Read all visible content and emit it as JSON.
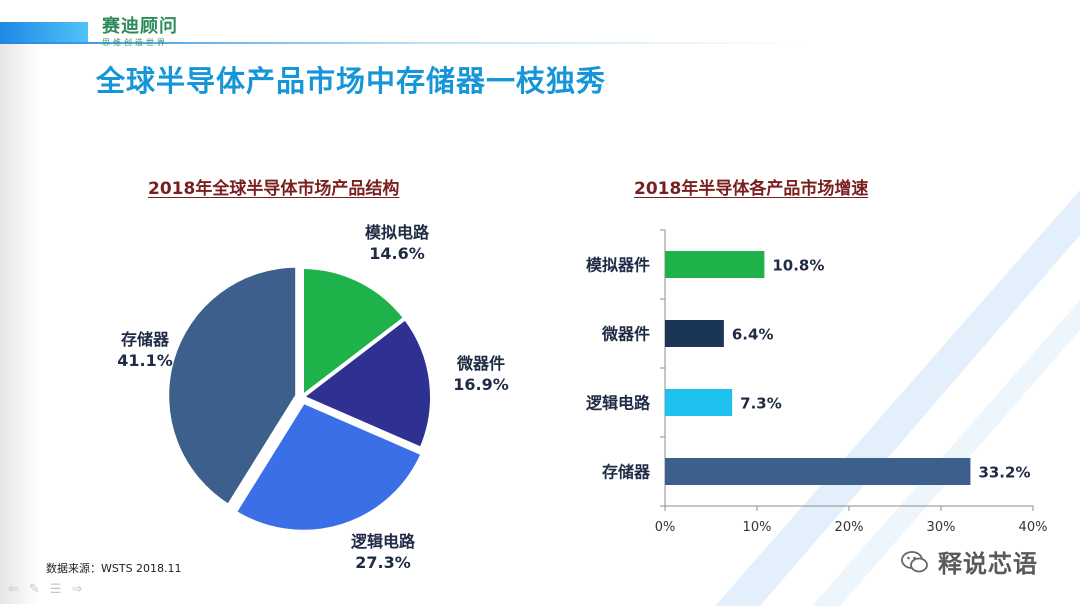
{
  "logo": {
    "name": "赛迪顾问",
    "tagline": "思维创造世界"
  },
  "page_title": "全球半导体产品市场中存储器一枝独秀",
  "source": "数据来源：WSTS 2018.11",
  "watermark": "释说芯语",
  "colors": {
    "title": "#1696d8",
    "chart_title": "#7a1f1f",
    "logo": "#2f8a5a"
  },
  "chart_data": [
    {
      "type": "pie",
      "title": "2018年全球半导体市场产品结构",
      "slices": [
        {
          "name": "模拟电路",
          "value": 14.6,
          "label": "14.6%",
          "color": "#1fb24a"
        },
        {
          "name": "微器件",
          "value": 16.9,
          "label": "16.9%",
          "color": "#2e3192"
        },
        {
          "name": "逻辑电路",
          "value": 27.3,
          "label": "27.3%",
          "color": "#3a6fe8"
        },
        {
          "name": "存储器",
          "value": 41.1,
          "label": "41.1%",
          "color": "#3c5f8c"
        }
      ]
    },
    {
      "type": "bar",
      "orientation": "horizontal",
      "title": "2018年半导体各产品市场增速",
      "categories": [
        "模拟器件",
        "微器件",
        "逻辑电路",
        "存储器"
      ],
      "values": [
        10.8,
        6.4,
        7.3,
        33.2
      ],
      "value_labels": [
        "10.8%",
        "6.4%",
        "7.3%",
        "33.2%"
      ],
      "colors": [
        "#1fb24a",
        "#1b3556",
        "#1ec0ee",
        "#3c5f8c"
      ],
      "xlim": [
        0,
        40
      ],
      "xticks": [
        "0%",
        "10%",
        "20%",
        "30%",
        "40%"
      ],
      "grid": false
    }
  ]
}
